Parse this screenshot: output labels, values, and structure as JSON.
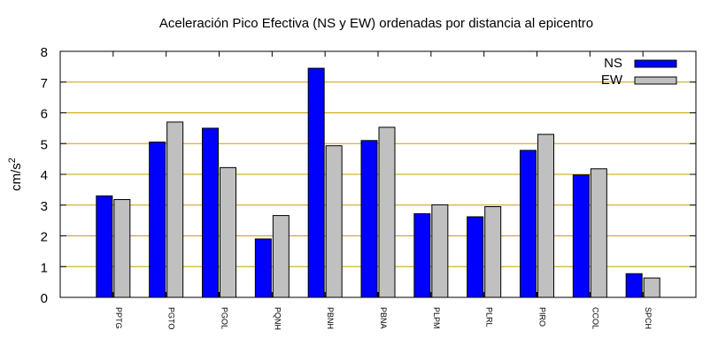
{
  "chart_data": {
    "type": "bar",
    "title": "Aceleración Pico Efectiva (NS y EW) ordenadas por distancia al epicentro",
    "ylabel_base": "cm/s",
    "ylabel_exp": "2",
    "xlabel": "",
    "ylim": [
      0,
      8
    ],
    "yticks": [
      "0",
      "1",
      "2",
      "3",
      "4",
      "5",
      "6",
      "7",
      "8"
    ],
    "grid": "horizontal",
    "legend_position": "top-right",
    "categories": [
      "PPTG",
      "PGTO",
      "PGOL",
      "PQNH",
      "PBNH",
      "PBNA",
      "PLPM",
      "PLRL",
      "PIRO",
      "CCOL",
      "SPCH"
    ],
    "series": [
      {
        "name": "NS",
        "color": "#0000ff",
        "values": [
          3.3,
          5.05,
          5.5,
          1.9,
          7.45,
          5.1,
          2.72,
          2.62,
          4.78,
          3.98,
          0.77
        ]
      },
      {
        "name": "EW",
        "color": "#c0c0c0",
        "values": [
          3.18,
          5.7,
          4.22,
          2.66,
          4.93,
          5.53,
          3.01,
          2.95,
          5.3,
          4.18,
          0.63
        ]
      }
    ],
    "grid_color": "#c8a000"
  }
}
